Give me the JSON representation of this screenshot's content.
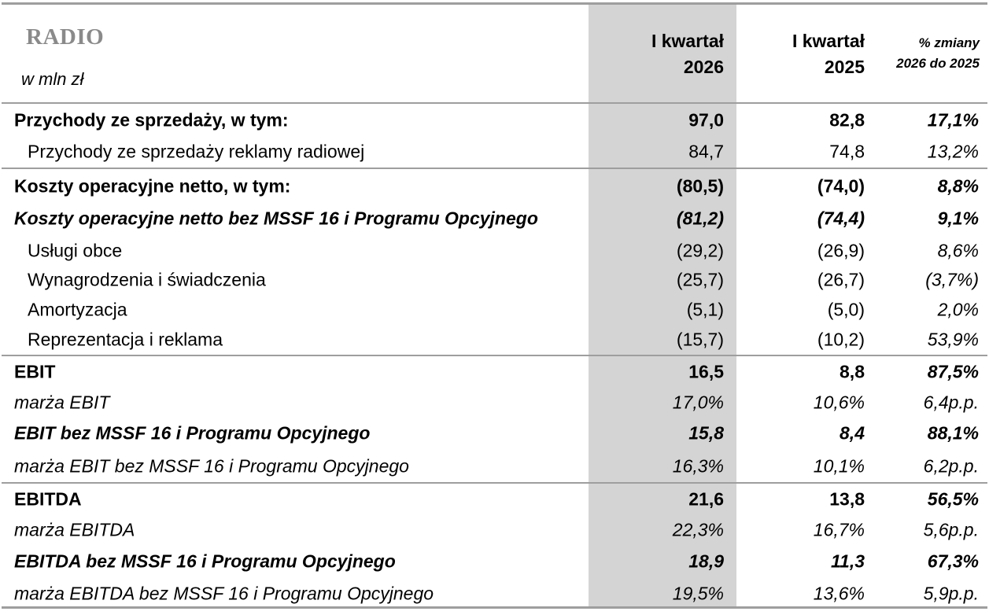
{
  "header": {
    "title": "RADIO",
    "unit": "w mln zł",
    "col1_line1": "I kwartał",
    "col1_line2": "2026",
    "col2_line1": "I kwartał",
    "col2_line2": "2025",
    "col3_line1": "% zmiany",
    "col3_line2": "2026 do 2025"
  },
  "rows": [
    {
      "label": "Przychody ze sprzedaży, w tym:",
      "v1": "97,0",
      "v2": "82,8",
      "v3": "17,1%"
    },
    {
      "label": "Przychody ze sprzedaży reklamy radiowej",
      "v1": "84,7",
      "v2": "74,8",
      "v3": "13,2%"
    },
    {
      "label": "Koszty operacyjne netto, w tym:",
      "v1": "(80,5)",
      "v2": "(74,0)",
      "v3": "8,8%"
    },
    {
      "label": "Koszty operacyjne netto bez MSSF 16 i Programu Opcyjnego",
      "v1": "(81,2)",
      "v2": "(74,4)",
      "v3": "9,1%"
    },
    {
      "label": "Usługi obce",
      "v1": "(29,2)",
      "v2": "(26,9)",
      "v3": "8,6%"
    },
    {
      "label": "Wynagrodzenia i świadczenia",
      "v1": "(25,7)",
      "v2": "(26,7)",
      "v3": "(3,7%)"
    },
    {
      "label": "Amortyzacja",
      "v1": "(5,1)",
      "v2": "(5,0)",
      "v3": "2,0%"
    },
    {
      "label": "Reprezentacja i reklama",
      "v1": "(15,7)",
      "v2": "(10,2)",
      "v3": "53,9%"
    },
    {
      "label": "EBIT",
      "v1": "16,5",
      "v2": "8,8",
      "v3": "87,5%"
    },
    {
      "label": "marża EBIT",
      "v1": "17,0%",
      "v2": "10,6%",
      "v3": "6,4p.p."
    },
    {
      "label": "EBIT bez MSSF 16 i Programu Opcyjnego",
      "v1": "15,8",
      "v2": "8,4",
      "v3": "88,1%"
    },
    {
      "label": "marża EBIT bez MSSF 16 i Programu Opcyjnego",
      "v1": "16,3%",
      "v2": "10,1%",
      "v3": "6,2p.p."
    },
    {
      "label": "EBITDA",
      "v1": "21,6",
      "v2": "13,8",
      "v3": "56,5%"
    },
    {
      "label": "marża EBITDA",
      "v1": "22,3%",
      "v2": "16,7%",
      "v3": "5,6p.p."
    },
    {
      "label": "EBITDA bez MSSF 16 i Programu Opcyjnego",
      "v1": "18,9",
      "v2": "11,3",
      "v3": "67,3%"
    },
    {
      "label": "marża EBITDA bez MSSF 16 i Programu Opcyjnego",
      "v1": "19,5%",
      "v2": "13,6%",
      "v3": "5,9p.p."
    }
  ],
  "colors": {
    "highlight_column": "#d4d4d4",
    "rule": "#9e9e9e",
    "title": "#8a8a8a"
  }
}
